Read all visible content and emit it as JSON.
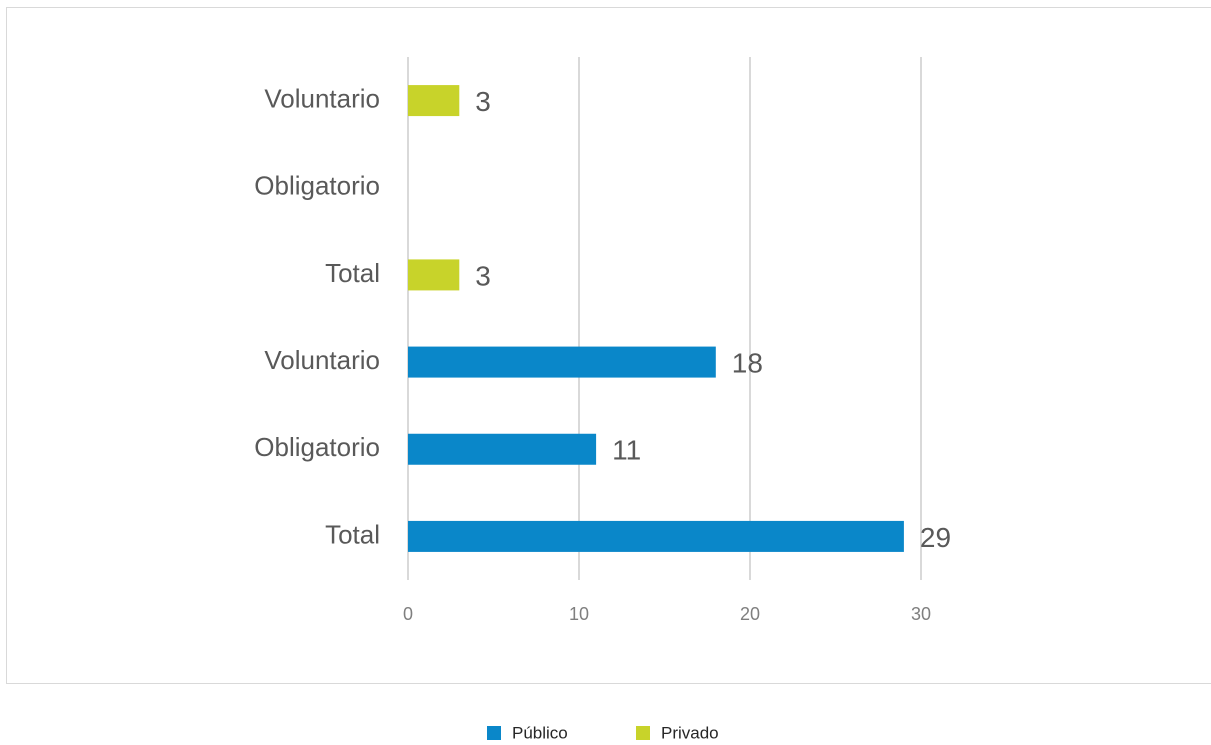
{
  "chart_data": {
    "type": "bar",
    "orientation": "horizontal",
    "categories": [
      "Total",
      "Obligatorio",
      "Voluntario",
      "Total",
      "Obligatorio",
      "Voluntario"
    ],
    "series": [
      {
        "name": "Público",
        "color": "#0a87c9",
        "values": [
          29,
          11,
          18,
          null,
          null,
          null
        ]
      },
      {
        "name": "Privado",
        "color": "#c8d32a",
        "values": [
          null,
          null,
          null,
          3,
          null,
          3
        ]
      }
    ],
    "xlim": [
      0,
      30
    ],
    "xticks": [
      0,
      10,
      20,
      30
    ],
    "grid": true,
    "legend": "bottom"
  }
}
